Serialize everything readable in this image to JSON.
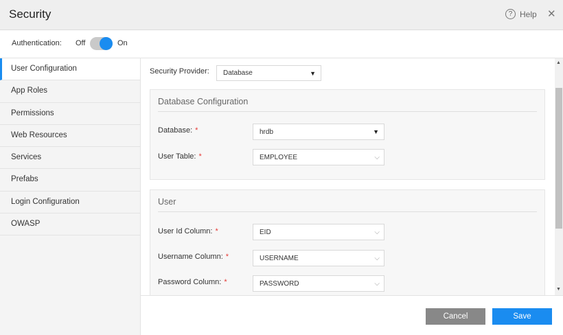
{
  "header": {
    "title": "Security",
    "help_label": "Help"
  },
  "auth": {
    "label": "Authentication:",
    "off_label": "Off",
    "on_label": "On",
    "enabled": true
  },
  "sidebar": {
    "items": [
      {
        "label": "User Configuration",
        "active": true
      },
      {
        "label": "App Roles"
      },
      {
        "label": "Permissions"
      },
      {
        "label": "Web Resources"
      },
      {
        "label": "Services"
      },
      {
        "label": "Prefabs"
      },
      {
        "label": "Login Configuration"
      },
      {
        "label": "OWASP"
      }
    ]
  },
  "main": {
    "provider": {
      "label": "Security Provider:",
      "value": "Database"
    },
    "db_panel": {
      "title": "Database Configuration",
      "database": {
        "label": "Database:",
        "value": "hrdb"
      },
      "user_table": {
        "label": "User Table:",
        "value": "EMPLOYEE"
      }
    },
    "user_panel": {
      "title": "User",
      "user_id": {
        "label": "User Id Column:",
        "value": "EID"
      },
      "username": {
        "label": "Username Column:",
        "value": "USERNAME"
      },
      "password": {
        "label": "Password Column:",
        "value": "PASSWORD"
      }
    },
    "required_mark": "*"
  },
  "footer": {
    "cancel_label": "Cancel",
    "save_label": "Save"
  },
  "colors": {
    "accent": "#1a8cf0",
    "required": "#e53935",
    "cancel": "#888888"
  }
}
